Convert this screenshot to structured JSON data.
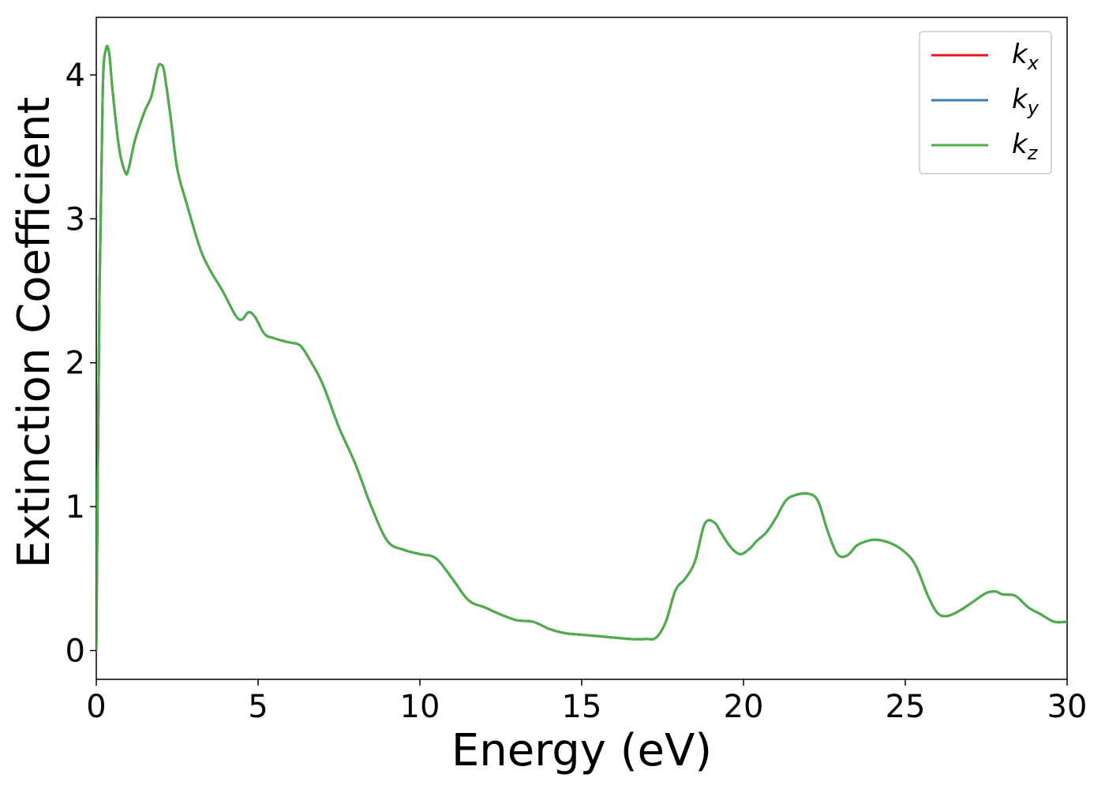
{
  "chart_data": {
    "type": "line",
    "xlabel": "Energy (eV)",
    "ylabel": "Extinction Coefficient",
    "xlim": [
      0,
      30
    ],
    "ylim": [
      -0.2,
      4.4
    ],
    "xticks": [
      0,
      5,
      10,
      15,
      20,
      25,
      30
    ],
    "yticks": [
      0,
      1,
      2,
      3,
      4
    ],
    "grid": false,
    "legend_position": "top-right",
    "x": [
      0.0,
      0.1,
      0.2,
      0.3,
      0.4,
      0.5,
      0.7,
      0.9,
      1.0,
      1.2,
      1.5,
      1.7,
      1.9,
      2.0,
      2.1,
      2.3,
      2.5,
      2.8,
      3.2,
      3.5,
      3.9,
      4.3,
      4.5,
      4.7,
      4.9,
      5.2,
      5.5,
      5.8,
      6.0,
      6.3,
      6.6,
      7.0,
      7.5,
      8.0,
      8.5,
      9.0,
      9.5,
      10.0,
      10.5,
      11.0,
      11.5,
      12.0,
      12.5,
      13.0,
      13.5,
      14.0,
      14.5,
      15.0,
      15.5,
      16.0,
      16.5,
      17.0,
      17.3,
      17.6,
      17.9,
      18.2,
      18.5,
      18.8,
      19.1,
      19.3,
      19.6,
      19.9,
      20.2,
      20.4,
      20.7,
      21.0,
      21.3,
      21.6,
      22.0,
      22.3,
      22.6,
      22.9,
      23.2,
      23.5,
      23.8,
      24.1,
      24.5,
      24.9,
      25.3,
      25.7,
      26.0,
      26.3,
      26.7,
      27.1,
      27.5,
      27.8,
      28.0,
      28.4,
      28.8,
      29.2,
      29.6,
      30.0
    ],
    "series": [
      {
        "name": "k_x",
        "color": "#e41a1c",
        "values": [
          0.0,
          2.5,
          3.9,
          4.18,
          4.15,
          3.9,
          3.5,
          3.32,
          3.35,
          3.55,
          3.75,
          3.85,
          4.05,
          4.07,
          4.02,
          3.7,
          3.35,
          3.1,
          2.8,
          2.65,
          2.5,
          2.33,
          2.3,
          2.35,
          2.32,
          2.2,
          2.17,
          2.15,
          2.14,
          2.12,
          2.02,
          1.85,
          1.55,
          1.3,
          1.0,
          0.76,
          0.7,
          0.67,
          0.64,
          0.5,
          0.35,
          0.3,
          0.25,
          0.21,
          0.2,
          0.15,
          0.12,
          0.11,
          0.1,
          0.09,
          0.08,
          0.08,
          0.09,
          0.2,
          0.42,
          0.5,
          0.62,
          0.88,
          0.89,
          0.82,
          0.72,
          0.67,
          0.71,
          0.76,
          0.82,
          0.92,
          1.04,
          1.08,
          1.09,
          1.04,
          0.83,
          0.67,
          0.66,
          0.73,
          0.76,
          0.77,
          0.75,
          0.7,
          0.6,
          0.38,
          0.26,
          0.24,
          0.28,
          0.34,
          0.4,
          0.41,
          0.39,
          0.38,
          0.3,
          0.25,
          0.2,
          0.2
        ]
      },
      {
        "name": "k_y",
        "color": "#377eb8",
        "values": [
          0.0,
          2.5,
          3.9,
          4.18,
          4.15,
          3.9,
          3.5,
          3.32,
          3.35,
          3.55,
          3.75,
          3.85,
          4.05,
          4.07,
          4.02,
          3.7,
          3.35,
          3.1,
          2.8,
          2.65,
          2.5,
          2.33,
          2.3,
          2.35,
          2.32,
          2.2,
          2.17,
          2.15,
          2.14,
          2.12,
          2.02,
          1.85,
          1.55,
          1.3,
          1.0,
          0.76,
          0.7,
          0.67,
          0.64,
          0.5,
          0.35,
          0.3,
          0.25,
          0.21,
          0.2,
          0.15,
          0.12,
          0.11,
          0.1,
          0.09,
          0.08,
          0.08,
          0.09,
          0.2,
          0.42,
          0.5,
          0.62,
          0.88,
          0.89,
          0.82,
          0.72,
          0.67,
          0.71,
          0.76,
          0.82,
          0.92,
          1.04,
          1.08,
          1.09,
          1.04,
          0.83,
          0.67,
          0.66,
          0.73,
          0.76,
          0.77,
          0.75,
          0.7,
          0.6,
          0.38,
          0.26,
          0.24,
          0.28,
          0.34,
          0.4,
          0.41,
          0.39,
          0.38,
          0.3,
          0.25,
          0.2,
          0.2
        ]
      },
      {
        "name": "k_z",
        "color": "#4daf4a",
        "values": [
          0.0,
          2.5,
          3.9,
          4.18,
          4.15,
          3.9,
          3.5,
          3.32,
          3.35,
          3.55,
          3.75,
          3.85,
          4.05,
          4.07,
          4.02,
          3.7,
          3.35,
          3.1,
          2.8,
          2.65,
          2.5,
          2.33,
          2.3,
          2.35,
          2.32,
          2.2,
          2.17,
          2.15,
          2.14,
          2.12,
          2.02,
          1.85,
          1.55,
          1.3,
          1.0,
          0.76,
          0.7,
          0.67,
          0.64,
          0.5,
          0.35,
          0.3,
          0.25,
          0.21,
          0.2,
          0.15,
          0.12,
          0.11,
          0.1,
          0.09,
          0.08,
          0.08,
          0.09,
          0.2,
          0.42,
          0.5,
          0.62,
          0.88,
          0.89,
          0.82,
          0.72,
          0.67,
          0.71,
          0.76,
          0.82,
          0.92,
          1.04,
          1.08,
          1.09,
          1.04,
          0.83,
          0.67,
          0.66,
          0.73,
          0.76,
          0.77,
          0.75,
          0.7,
          0.6,
          0.38,
          0.26,
          0.24,
          0.28,
          0.34,
          0.4,
          0.41,
          0.39,
          0.38,
          0.3,
          0.25,
          0.2,
          0.2
        ]
      }
    ],
    "legend": [
      {
        "base": "k",
        "sub": "x",
        "color": "#e41a1c"
      },
      {
        "base": "k",
        "sub": "y",
        "color": "#377eb8"
      },
      {
        "base": "k",
        "sub": "z",
        "color": "#4daf4a"
      }
    ]
  }
}
